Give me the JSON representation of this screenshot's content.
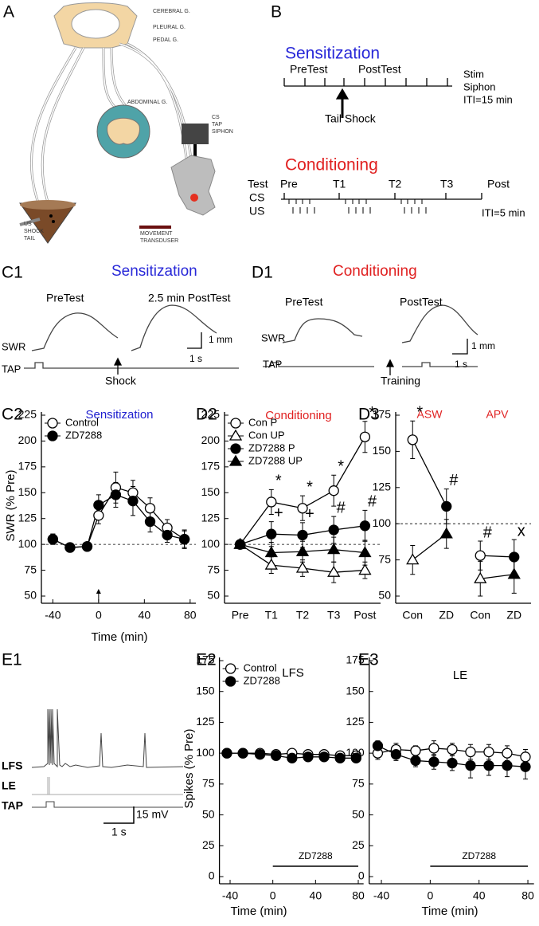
{
  "panel_labels": [
    "A",
    "B",
    "C1",
    "D1",
    "C2",
    "D2",
    "D3",
    "E1",
    "E2",
    "E3"
  ],
  "panel_a": {
    "cerebral": "CEREBRAL G.",
    "pleural": "PLEURAL G.",
    "pedal": "PEDAL G.",
    "abdominal": "ABDOMINAL G.",
    "cs_label": [
      "CS",
      "TAP",
      "SIPHON"
    ],
    "us_label": [
      "US",
      "SHOCK",
      "TAIL"
    ],
    "transducer_label": [
      "MOVEMENT",
      "TRANSDUSER"
    ]
  },
  "panel_b": {
    "sensitization": {
      "title": "Sensitization",
      "pretest": "PreTest",
      "posttest": "PostTest",
      "notes": [
        "Stim",
        "Siphon",
        "ITI=15 min"
      ],
      "shock": "Tail Shock"
    },
    "conditioning": {
      "title": "Conditioning",
      "test": "Test",
      "tests": [
        "Pre",
        "T1",
        "T2",
        "T3",
        "Post"
      ],
      "cs": "CS",
      "us": "US",
      "iti": "ITI=5 min"
    }
  },
  "panel_c1": {
    "title": "Sensitization",
    "pretest": "PreTest",
    "posttest": "2.5 min PostTest",
    "swr": "SWR",
    "tap": "TAP",
    "scale_y": "1 mm",
    "scale_x": "1 s",
    "event": "Shock"
  },
  "panel_d1": {
    "title": "Conditioning",
    "pretest": "PreTest",
    "posttest": "PostTest",
    "swr": "SWR",
    "tap": "TAP",
    "scale_y": "1 mm",
    "scale_x": "1 s",
    "event": "Training"
  },
  "panel_e1": {
    "traces": [
      "LFS",
      "LE",
      "TAP"
    ],
    "scale_y": "15 mV",
    "scale_x": "1 s"
  },
  "chart_data": [
    {
      "type": "line",
      "title": "Sensitization",
      "title_color": "#2020d0",
      "y_label": "SWR (% Pre)",
      "x_label": "Time (min)",
      "x": [
        -40,
        -25,
        -10,
        0,
        15,
        30,
        45,
        60,
        75
      ],
      "xlim": [
        -50,
        85
      ],
      "xticks": [
        -40,
        0,
        40,
        80
      ],
      "ylim": [
        50,
        225
      ],
      "yticks": [
        50,
        75,
        100,
        125,
        150,
        175,
        200,
        225
      ],
      "hline": 100,
      "arrow_at": 0,
      "legend": "top-left",
      "series": [
        {
          "name": "Control",
          "color": "#000000",
          "marker": "circle",
          "marker_fill": "#ffffff",
          "values": [
            105,
            97,
            98,
            128,
            155,
            150,
            135,
            116,
            105
          ],
          "errors": [
            5,
            3,
            3,
            8,
            15,
            12,
            10,
            8,
            9
          ]
        },
        {
          "name": "ZD7288",
          "color": "#000000",
          "marker": "circle",
          "marker_fill": "#000000",
          "values": [
            105,
            97,
            98,
            138,
            148,
            142,
            122,
            109,
            105
          ],
          "errors": [
            5,
            3,
            3,
            10,
            12,
            14,
            10,
            7,
            8
          ]
        }
      ]
    },
    {
      "type": "line",
      "title": "Conditioning",
      "title_color": "#e02020",
      "categories": [
        "Pre",
        "T1",
        "T2",
        "T3",
        "Post"
      ],
      "ylim": [
        50,
        225
      ],
      "yticks": [
        50,
        75,
        100,
        125,
        150,
        175,
        200,
        225
      ],
      "hline": 100,
      "legend": "top-left",
      "series": [
        {
          "name": "Con P",
          "color": "#000000",
          "marker": "circle",
          "marker_fill": "#ffffff",
          "values": [
            100,
            141,
            135,
            152,
            204
          ],
          "errors": [
            0,
            12,
            12,
            15,
            15
          ],
          "point_labels": [
            null,
            "*",
            "*",
            "*",
            "*"
          ]
        },
        {
          "name": "Con UP",
          "color": "#000000",
          "marker": "triangle",
          "marker_fill": "#ffffff",
          "values": [
            100,
            80,
            77,
            73,
            75
          ],
          "errors": [
            0,
            8,
            8,
            10,
            8
          ]
        },
        {
          "name": "ZD7288 P",
          "color": "#000000",
          "marker": "circle",
          "marker_fill": "#000000",
          "values": [
            100,
            110,
            109,
            114,
            118
          ],
          "errors": [
            0,
            12,
            12,
            13,
            15
          ],
          "point_labels": [
            null,
            "+",
            "+",
            "#",
            "#"
          ]
        },
        {
          "name": "ZD7288 UP",
          "color": "#000000",
          "marker": "triangle",
          "marker_fill": "#000000",
          "values": [
            100,
            92,
            93,
            95,
            92
          ],
          "errors": [
            0,
            10,
            10,
            12,
            12
          ]
        }
      ]
    },
    {
      "type": "line",
      "group_labels": [
        "ASW",
        "APV"
      ],
      "group_color": "#e02020",
      "categories": [
        "Con",
        "ZD",
        "Con",
        "ZD"
      ],
      "ylim": [
        50,
        175
      ],
      "yticks": [
        50,
        75,
        100,
        125,
        150,
        175
      ],
      "hline": 100,
      "series": [
        {
          "color": "#000000",
          "marker": "circle",
          "values": [
            158,
            112,
            null,
            null
          ],
          "errors": [
            13,
            12,
            null,
            null
          ],
          "marker_fills": [
            "#ffffff",
            "#000000",
            null,
            null
          ],
          "point_labels": [
            "*",
            "#",
            null,
            null
          ]
        },
        {
          "color": "#000000",
          "marker": "triangle",
          "values": [
            75,
            93,
            null,
            null
          ],
          "errors": [
            10,
            10,
            null,
            null
          ],
          "marker_fills": [
            "#ffffff",
            "#000000",
            null,
            null
          ]
        },
        {
          "color": "#000000",
          "marker": "circle",
          "values": [
            null,
            null,
            78,
            77
          ],
          "errors": [
            null,
            null,
            10,
            12
          ],
          "marker_fills": [
            null,
            null,
            "#ffffff",
            "#000000"
          ],
          "point_labels": [
            null,
            null,
            "#",
            "x"
          ]
        },
        {
          "color": "#000000",
          "marker": "triangle",
          "values": [
            null,
            null,
            62,
            65
          ],
          "errors": [
            null,
            null,
            12,
            13
          ],
          "marker_fills": [
            null,
            null,
            "#ffffff",
            "#000000"
          ]
        }
      ]
    },
    {
      "type": "line",
      "title": "LFS",
      "title_color": "#000000",
      "y_label": "Spikes (% Pre)",
      "x_label": "Time (min)",
      "x": [
        -43,
        -28,
        -12,
        3,
        18,
        33,
        48,
        63,
        78
      ],
      "xlim": [
        -50,
        85
      ],
      "xticks": [
        -40,
        0,
        40,
        80
      ],
      "ylim": [
        0,
        175
      ],
      "yticks": [
        0,
        25,
        50,
        75,
        100,
        125,
        150,
        175
      ],
      "legend": "top-left",
      "drug_bar": {
        "label": "ZD7288",
        "start": 0,
        "end": 80
      },
      "series": [
        {
          "name": "Control",
          "color": "#000000",
          "marker": "circle",
          "marker_fill": "#ffffff",
          "values": [
            100,
            100,
            100,
            99,
            100,
            99,
            99,
            98,
            98
          ],
          "errors": [
            3,
            3,
            3,
            3,
            3,
            3,
            3,
            3,
            3
          ]
        },
        {
          "name": "ZD7288",
          "color": "#000000",
          "marker": "circle",
          "marker_fill": "#000000",
          "values": [
            100,
            100,
            99,
            98,
            96,
            97,
            97,
            96,
            96
          ],
          "errors": [
            3,
            3,
            3,
            3,
            3,
            3,
            3,
            3,
            3
          ]
        }
      ]
    },
    {
      "type": "line",
      "title": "LE",
      "title_color": "#000000",
      "x_label": "Time (min)",
      "x": [
        -43,
        -28,
        -12,
        3,
        18,
        33,
        48,
        63,
        78
      ],
      "xlim": [
        -50,
        85
      ],
      "xticks": [
        -40,
        0,
        40,
        80
      ],
      "ylim": [
        0,
        175
      ],
      "yticks": [
        0,
        25,
        50,
        75,
        100,
        125,
        150,
        175
      ],
      "drug_bar": {
        "label": "ZD7288",
        "start": 0,
        "end": 80
      },
      "series": [
        {
          "color": "#000000",
          "marker": "circle",
          "marker_fill": "#ffffff",
          "values": [
            100,
            103,
            102,
            104,
            103,
            101,
            101,
            100,
            97
          ],
          "errors": [
            5,
            5,
            4,
            6,
            5,
            6,
            6,
            6,
            6
          ]
        },
        {
          "color": "#000000",
          "marker": "circle",
          "marker_fill": "#000000",
          "values": [
            106,
            99,
            94,
            93,
            92,
            90,
            90,
            90,
            89
          ],
          "errors": [
            4,
            5,
            5,
            6,
            6,
            10,
            8,
            9,
            10
          ]
        }
      ]
    }
  ]
}
